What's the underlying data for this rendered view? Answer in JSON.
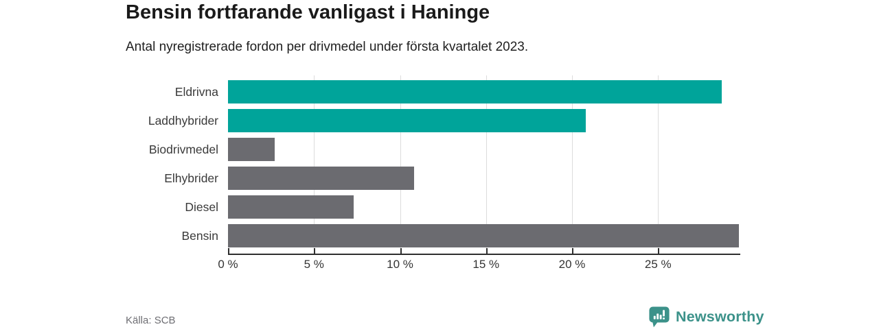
{
  "page": {
    "title": "Bensin fortfarande vanligast i Haninge",
    "subtitle": "Antal nyregistrerade fordon per drivmedel under första kvartalet 2023.",
    "source": "Källa: SCB"
  },
  "logo": {
    "text": "Newsworthy",
    "icon": "bar-chart-exclamation-bubble-icon"
  },
  "colors": {
    "highlight_bar": "#00a49a",
    "default_bar": "#6b6b70",
    "gridline": "#dcdcdc",
    "axis": "#2e2e2e",
    "brand_teal": "#3c928a"
  },
  "chart_data": {
    "type": "bar",
    "orientation": "horizontal",
    "title": "Bensin fortfarande vanligast i Haninge",
    "subtitle": "Antal nyregistrerade fordon per drivmedel under första kvartalet 2023.",
    "source": "Källa: SCB",
    "unit": "%",
    "categories": [
      "Eldrivna",
      "Laddhybrider",
      "Biodrivmedel",
      "Elhybrider",
      "Diesel",
      "Bensin"
    ],
    "values": [
      28.7,
      20.8,
      2.7,
      10.8,
      7.3,
      29.7
    ],
    "bar_color_keys": [
      "highlight",
      "highlight",
      "default",
      "default",
      "default",
      "default"
    ],
    "xlim": [
      0,
      29.7
    ],
    "x_ticks": [
      0,
      5,
      10,
      15,
      20,
      25
    ],
    "x_tick_labels": [
      "0 %",
      "5 %",
      "10 %",
      "15 %",
      "20 %",
      "25 %"
    ],
    "gridlines_at": [
      5,
      10,
      15,
      20,
      25
    ],
    "grid": "vertical",
    "legend": "none",
    "ylabel": "",
    "xlabel": ""
  }
}
